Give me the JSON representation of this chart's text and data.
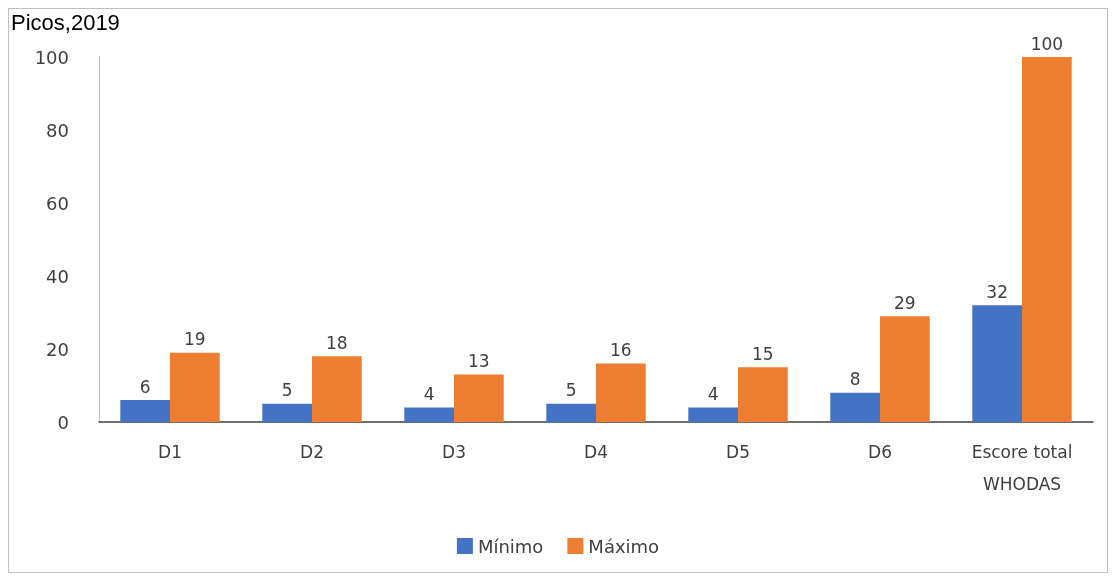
{
  "chart_data": {
    "type": "bar",
    "annotations": [
      "Picos,2019"
    ],
    "categories": [
      "D1",
      "D2",
      "D3",
      "D4",
      "D5",
      "D6",
      "Escore total\nWHODAS"
    ],
    "series": [
      {
        "name": "Mínimo",
        "color": "#4472c4",
        "values": [
          6,
          5,
          4,
          5,
          4,
          8,
          32
        ]
      },
      {
        "name": "Máximo",
        "color": "#ed7d31",
        "values": [
          19,
          18,
          13,
          16,
          15,
          29,
          100
        ]
      }
    ],
    "ylim": [
      0,
      100
    ],
    "yticks": [
      0,
      20,
      40,
      60,
      80,
      100
    ],
    "grid": false,
    "legend": "bottom",
    "data_labels": true
  }
}
